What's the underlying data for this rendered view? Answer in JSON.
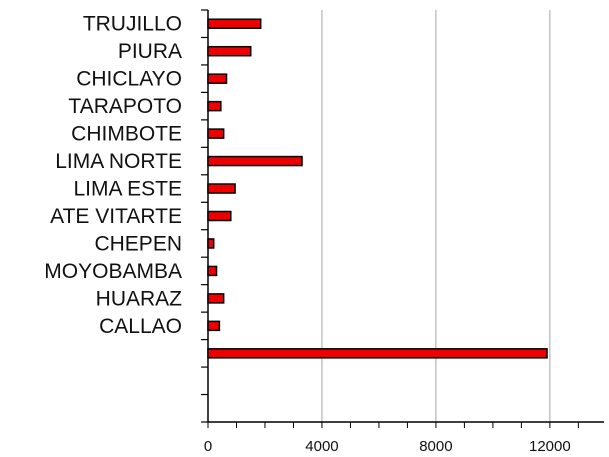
{
  "chart_data": {
    "type": "bar",
    "orientation": "horizontal",
    "categories": [
      "TRUJILLO",
      "PIURA",
      "CHICLAYO",
      "TARAPOTO",
      "CHIMBOTE",
      "LIMA NORTE",
      "LIMA ESTE",
      "ATE VITARTE",
      "CHEPEN",
      "MOYOBAMBA",
      "HUARAZ",
      "CALLAO",
      "",
      "",
      ""
    ],
    "values": [
      1850,
      1500,
      650,
      450,
      550,
      3300,
      950,
      800,
      200,
      300,
      550,
      400,
      11900,
      null,
      null
    ],
    "xticks": [
      0,
      4000,
      8000,
      12000
    ],
    "xlim": [
      0,
      13900
    ],
    "grid": "vertical",
    "bar_color": "#ee0000",
    "bar_edge_color": "#000000"
  }
}
